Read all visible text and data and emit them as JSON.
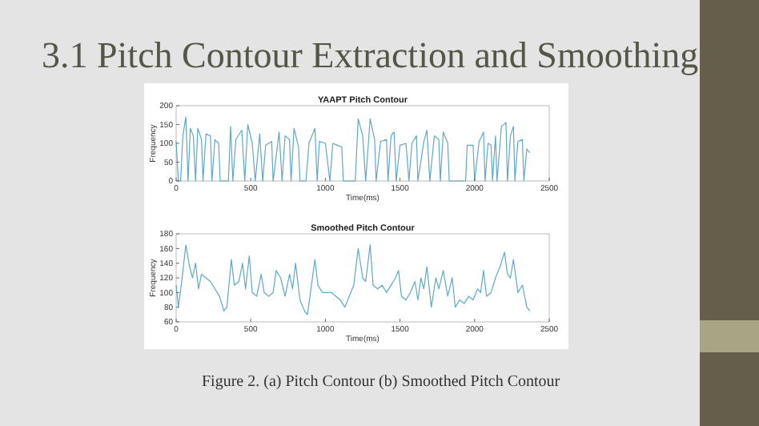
{
  "chart_data": [
    {
      "type": "line",
      "title": "YAAPT Pitch Contour",
      "xlabel": "Time(ms)",
      "ylabel": "Frequency",
      "xlim": [
        0,
        2500
      ],
      "ylim": [
        0,
        200
      ],
      "xticks": [
        0,
        500,
        1000,
        1500,
        2000,
        2500
      ],
      "yticks": [
        0,
        50,
        100,
        150,
        200
      ],
      "annotations": [
        "3.1 Pitch Contour Extraction and Smoothing"
      ],
      "series": [
        {
          "color": "#5fa8c8",
          "x": [
            0,
            15,
            30,
            45,
            65,
            80,
            95,
            115,
            130,
            145,
            170,
            180,
            200,
            230,
            240,
            260,
            285,
            295,
            350,
            365,
            380,
            400,
            440,
            460,
            480,
            510,
            530,
            560,
            580,
            600,
            640,
            650,
            690,
            710,
            730,
            760,
            770,
            790,
            820,
            830,
            870,
            890,
            930,
            945,
            960,
            1000,
            1030,
            1050,
            1080,
            1110,
            1120,
            1200,
            1220,
            1250,
            1270,
            1300,
            1330,
            1340,
            1370,
            1410,
            1420,
            1440,
            1460,
            1475,
            1500,
            1540,
            1560,
            1580,
            1610,
            1620,
            1660,
            1680,
            1700,
            1730,
            1760,
            1770,
            1790,
            1820,
            1830,
            1940,
            1950,
            1990,
            2000,
            2030,
            2060,
            2070,
            2090,
            2110,
            2120,
            2140,
            2150,
            2180,
            2210,
            2220,
            2240,
            2260,
            2270,
            2290,
            2320,
            2330,
            2350,
            2370
          ],
          "values": [
            105,
            0,
            0,
            120,
            170,
            0,
            140,
            120,
            0,
            140,
            110,
            0,
            125,
            120,
            0,
            110,
            100,
            0,
            0,
            145,
            0,
            110,
            135,
            0,
            150,
            100,
            0,
            125,
            0,
            95,
            105,
            0,
            130,
            0,
            120,
            110,
            0,
            140,
            90,
            0,
            0,
            100,
            140,
            0,
            105,
            100,
            0,
            100,
            95,
            90,
            0,
            0,
            165,
            120,
            0,
            165,
            110,
            0,
            105,
            110,
            0,
            120,
            130,
            0,
            95,
            100,
            0,
            100,
            120,
            0,
            105,
            135,
            0,
            120,
            110,
            0,
            130,
            100,
            0,
            0,
            95,
            95,
            0,
            105,
            130,
            0,
            100,
            95,
            0,
            120,
            0,
            145,
            155,
            0,
            120,
            145,
            0,
            105,
            110,
            0,
            85,
            75
          ]
        }
      ]
    },
    {
      "type": "line",
      "title": "Smoothed Pitch Contour",
      "xlabel": "Time(ms)",
      "ylabel": "Frequency",
      "xlim": [
        0,
        2500
      ],
      "ylim": [
        60,
        180
      ],
      "xticks": [
        0,
        500,
        1000,
        1500,
        2000,
        2500
      ],
      "yticks": [
        60,
        80,
        100,
        120,
        140,
        160,
        180
      ],
      "annotations": [
        "Figure 2. (a) Pitch Contour (b) Smoothed Pitch Contour"
      ],
      "series": [
        {
          "color": "#5fa8c8",
          "x": [
            0,
            15,
            40,
            65,
            90,
            110,
            130,
            150,
            170,
            200,
            230,
            260,
            290,
            320,
            340,
            370,
            390,
            420,
            445,
            465,
            490,
            510,
            540,
            570,
            590,
            620,
            650,
            670,
            700,
            730,
            760,
            780,
            800,
            830,
            860,
            880,
            900,
            930,
            950,
            980,
            1010,
            1040,
            1070,
            1100,
            1130,
            1160,
            1190,
            1220,
            1250,
            1270,
            1300,
            1320,
            1350,
            1380,
            1410,
            1440,
            1470,
            1490,
            1510,
            1540,
            1570,
            1600,
            1620,
            1640,
            1660,
            1680,
            1710,
            1740,
            1760,
            1790,
            1820,
            1850,
            1870,
            1900,
            1930,
            1960,
            1990,
            2020,
            2040,
            2060,
            2080,
            2110,
            2140,
            2170,
            2200,
            2220,
            2240,
            2260,
            2290,
            2320,
            2350,
            2370
          ],
          "values": [
            110,
            80,
            120,
            165,
            135,
            120,
            140,
            105,
            125,
            120,
            115,
            105,
            95,
            75,
            80,
            145,
            110,
            115,
            140,
            105,
            150,
            100,
            95,
            125,
            100,
            95,
            100,
            130,
            120,
            95,
            125,
            105,
            140,
            90,
            75,
            70,
            100,
            145,
            110,
            100,
            100,
            100,
            95,
            90,
            80,
            95,
            110,
            160,
            120,
            115,
            165,
            110,
            105,
            110,
            100,
            110,
            120,
            130,
            95,
            90,
            100,
            115,
            90,
            120,
            105,
            135,
            80,
            120,
            105,
            130,
            95,
            120,
            80,
            90,
            85,
            95,
            90,
            105,
            100,
            130,
            95,
            100,
            120,
            135,
            155,
            125,
            120,
            145,
            100,
            110,
            80,
            75
          ]
        }
      ]
    }
  ]
}
